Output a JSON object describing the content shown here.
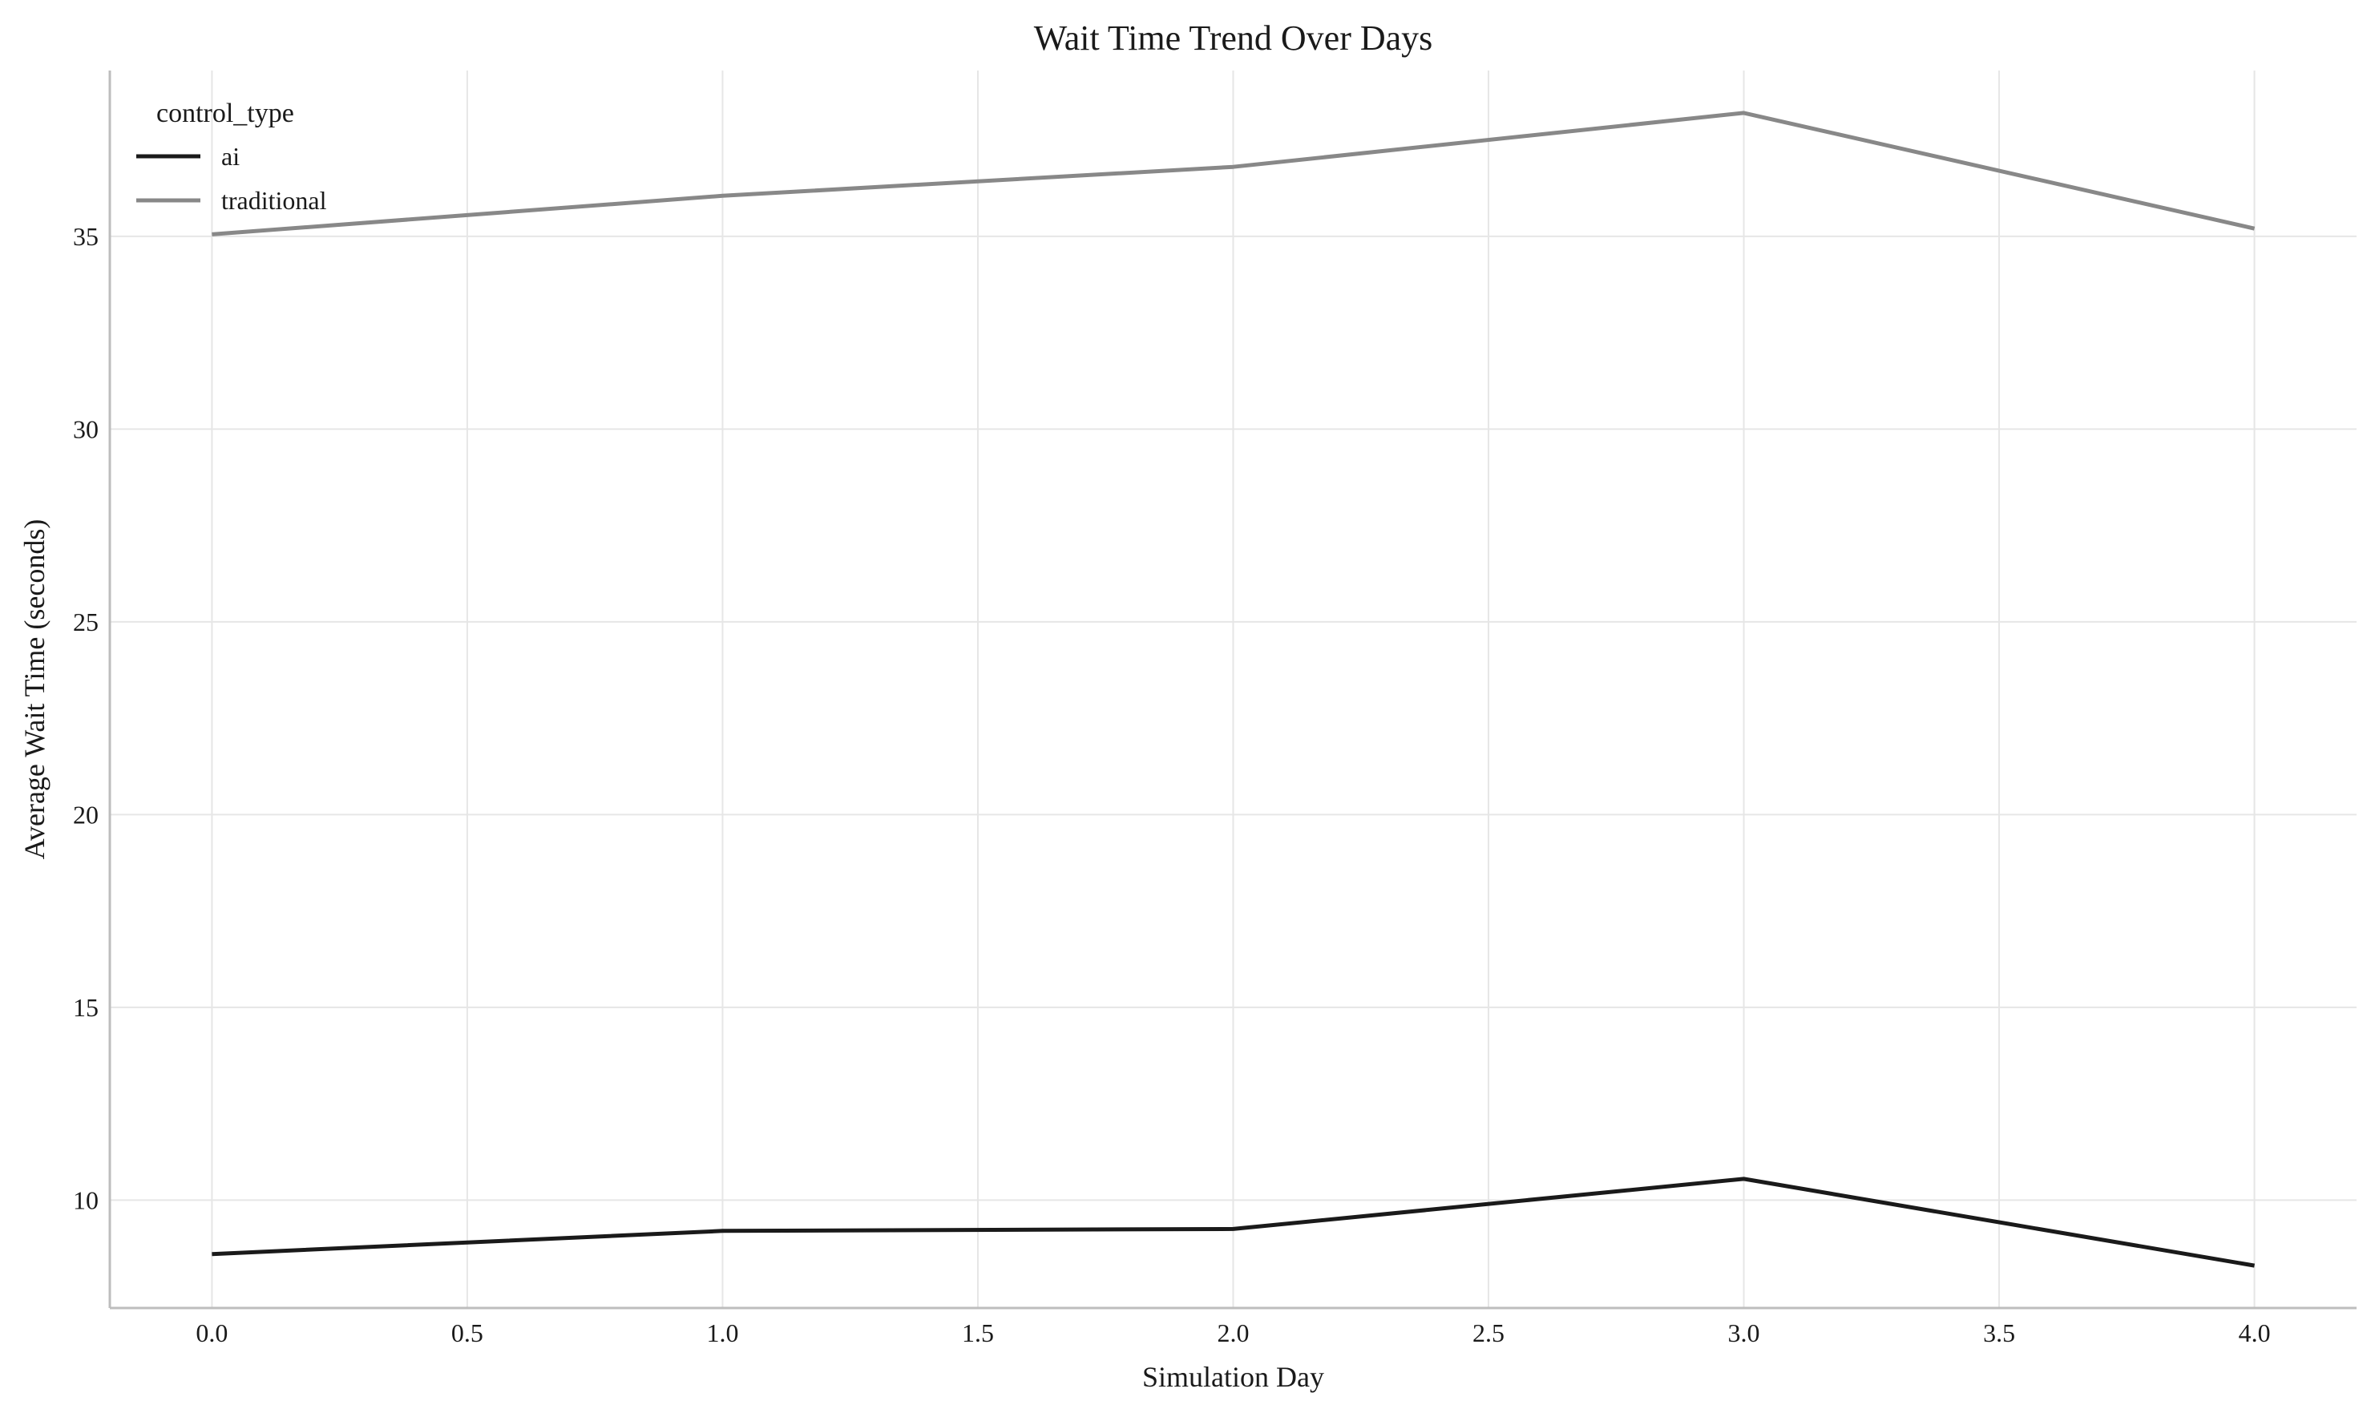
{
  "chart_data": {
    "type": "line",
    "title": "Wait Time Trend Over Days",
    "xlabel": "Simulation Day",
    "ylabel": "Average Wait Time (seconds)",
    "xlim": [
      -0.2,
      4.2
    ],
    "ylim": [
      7.2,
      39.3
    ],
    "xticks": [
      0.0,
      0.5,
      1.0,
      1.5,
      2.0,
      2.5,
      3.0,
      3.5,
      4.0
    ],
    "xtick_labels": [
      "0.0",
      "0.5",
      "1.0",
      "1.5",
      "2.0",
      "2.5",
      "3.0",
      "3.5",
      "4.0"
    ],
    "yticks": [
      10,
      15,
      20,
      25,
      30,
      35
    ],
    "ytick_labels": [
      "10",
      "15",
      "20",
      "25",
      "30",
      "35"
    ],
    "grid": true,
    "legend": {
      "title": "control_type",
      "placement": "top-left"
    },
    "x": [
      0,
      1,
      2,
      3,
      4
    ],
    "series": [
      {
        "name": "ai",
        "color": "#1a1a1a",
        "values": [
          8.6,
          9.2,
          9.25,
          10.55,
          8.3
        ]
      },
      {
        "name": "traditional",
        "color": "#888888",
        "values": [
          35.05,
          36.05,
          36.8,
          38.2,
          35.2
        ]
      }
    ]
  }
}
